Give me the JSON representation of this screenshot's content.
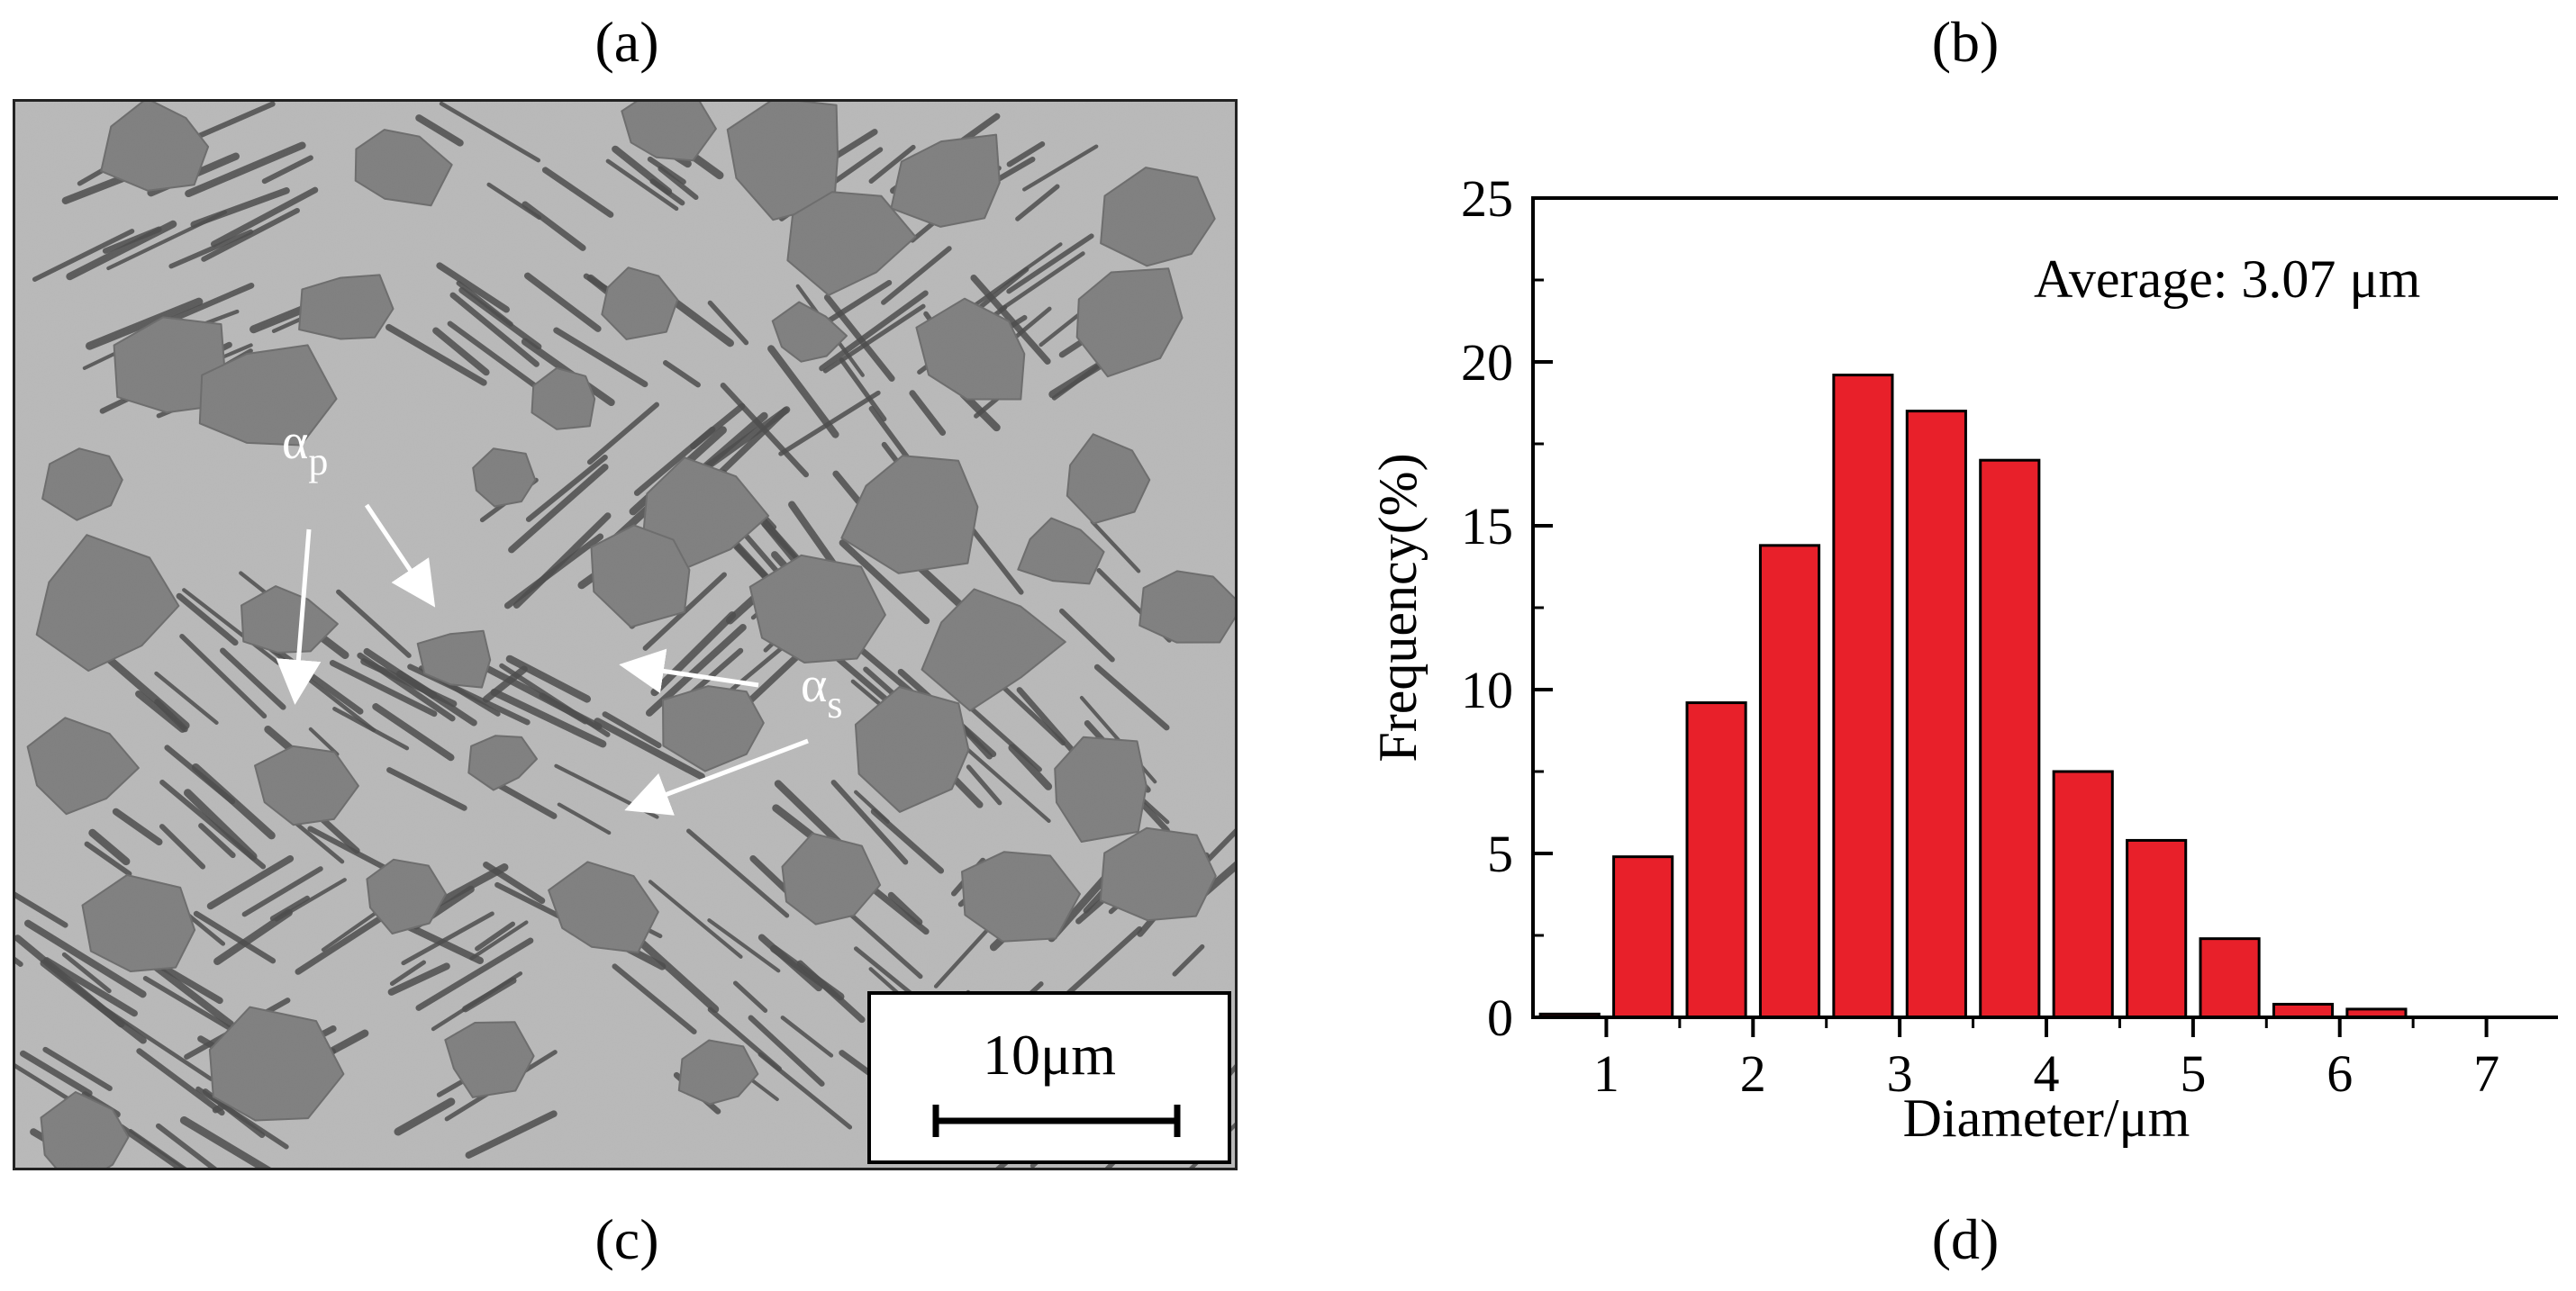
{
  "panels": {
    "a": "(a)",
    "b": "(b)",
    "c": "(c)",
    "d": "(d)"
  },
  "micrograph": {
    "scale_bar_label": "10μm",
    "scale_bar_length_um": 10,
    "annotations": {
      "alpha_p": {
        "symbol": "α",
        "subscript": "p"
      },
      "alpha_s": {
        "symbol": "α",
        "subscript": "s"
      }
    },
    "colors": {
      "matrix": "#b9b9b9",
      "grain": "#6e6e6e",
      "lath": "#2a2a2a",
      "arrow": "#ffffff"
    }
  },
  "chart_data": {
    "type": "bar",
    "x": [
      0.75,
      1.25,
      1.75,
      2.25,
      2.75,
      3.25,
      3.75,
      4.25,
      4.75,
      5.25,
      5.75,
      6.25,
      6.75,
      7.25
    ],
    "values": [
      0.1,
      4.9,
      9.6,
      14.4,
      19.6,
      18.5,
      17.0,
      7.5,
      5.4,
      2.4,
      0.4,
      0.25,
      0,
      0
    ],
    "bar_width": 0.4,
    "xlabel": "Diameter/μm",
    "ylabel": "Frequency(%)",
    "xlim": [
      0.5,
      7.5
    ],
    "ylim": [
      0,
      25
    ],
    "xticks": [
      1,
      2,
      3,
      4,
      5,
      6,
      7
    ],
    "yticks": [
      0,
      5,
      10,
      15,
      20,
      25
    ],
    "annotation": "Average: 3.07 μm",
    "grid": false,
    "bar_color": "#e8202a",
    "edge_color": "#000000"
  }
}
